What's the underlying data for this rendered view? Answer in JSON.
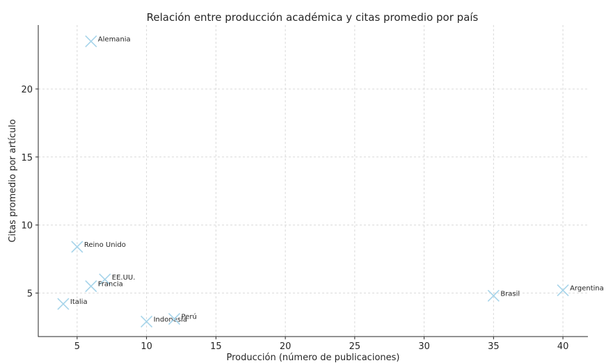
{
  "chart_data": {
    "type": "scatter",
    "title": "Relación entre producción académica y citas promedio por país",
    "xlabel": "Producción (número de publicaciones)",
    "ylabel": "Citas promedio por artículo",
    "xlim": [
      2.2,
      41.8
    ],
    "ylim": [
      1.8,
      24.7
    ],
    "xticks": [
      5,
      10,
      15,
      20,
      25,
      30,
      35,
      40
    ],
    "yticks": [
      5,
      10,
      15,
      20
    ],
    "grid": true,
    "marker": "x",
    "marker_color": "#a6d4ea",
    "points": [
      {
        "label": "Alemania",
        "x": 6,
        "y": 23.5
      },
      {
        "label": "Reino Unido",
        "x": 5,
        "y": 8.4
      },
      {
        "label": "EE.UU.",
        "x": 7,
        "y": 6.0
      },
      {
        "label": "Francia",
        "x": 6,
        "y": 5.5
      },
      {
        "label": "Italia",
        "x": 4,
        "y": 4.2
      },
      {
        "label": "Indonesia",
        "x": 10,
        "y": 2.9
      },
      {
        "label": "Perú",
        "x": 12,
        "y": 3.1
      },
      {
        "label": "Brasil",
        "x": 35,
        "y": 4.8
      },
      {
        "label": "Argentina",
        "x": 40,
        "y": 5.2
      }
    ]
  }
}
